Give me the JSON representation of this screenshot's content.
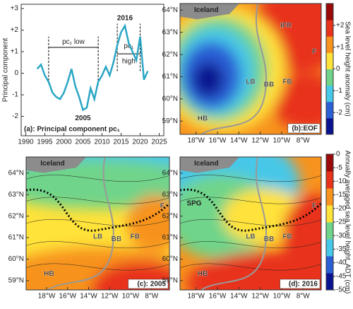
{
  "chart_data": [
    {
      "type": "line",
      "title": "(a): Principal component pc₁",
      "y_label": "Principal component",
      "x": [
        1993,
        1994,
        1995,
        1996,
        1997,
        1998,
        1999,
        2000,
        2001,
        2002,
        2003,
        2004,
        2005,
        2006,
        2007,
        2008,
        2009,
        2010,
        2011,
        2012,
        2013,
        2014,
        2015,
        2016,
        2017,
        2018,
        2019,
        2020,
        2021,
        2022
      ],
      "series": [
        {
          "name": "pc₁",
          "color": "#2aa6c4",
          "values": [
            0.2,
            0.4,
            -0.1,
            -0.4,
            -0.9,
            -1.1,
            -1.2,
            -0.9,
            -0.4,
            0.2,
            -0.6,
            -1.1,
            -1.7,
            -1.6,
            -0.7,
            -1.2,
            -0.4,
            -0.1,
            0.3,
            -0.1,
            0.5,
            1.3,
            1.9,
            2.2,
            1.4,
            1.0,
            0.6,
            1.7,
            -0.3,
            0.1
          ]
        }
      ],
      "xlim": [
        1988.8,
        2026.2
      ],
      "xticks": [
        1990,
        1995,
        2000,
        2005,
        2010,
        2015,
        2020,
        2025
      ],
      "ylim": [
        -2.9,
        3.2
      ],
      "yticks": [
        {
          "value": 3,
          "label": "+3"
        },
        {
          "value": 2,
          "label": "+2"
        },
        {
          "value": 1,
          "label": "+1"
        },
        0,
        -1,
        -2
      ],
      "annotations": [
        "2016",
        "2005",
        "pc₁ low",
        "pc₁",
        "high"
      ],
      "periods": [
        [
          1996,
          2009
        ],
        [
          2014,
          2020
        ]
      ]
    },
    {
      "type": "map",
      "title": "(b):EOF",
      "labels": [
        "Iceland",
        "IFR",
        "F",
        "LB",
        "BB",
        "FB",
        "HB"
      ],
      "xlim": [
        -19.5,
        -6.3
      ],
      "ylim": [
        58.4,
        64.3
      ],
      "xticks": [
        {
          "value": -18,
          "label": "18°W"
        },
        {
          "value": -16,
          "label": "16°W"
        },
        {
          "value": -14,
          "label": "14°W"
        },
        {
          "value": -12,
          "label": "12°W"
        },
        {
          "value": -10,
          "label": "10°W"
        },
        {
          "value": -8,
          "label": "8°W"
        }
      ],
      "yticks": [
        {
          "value": 64,
          "label": "64°N"
        },
        {
          "value": 63,
          "label": "63°N"
        },
        {
          "value": 62,
          "label": "62°N"
        },
        {
          "value": 61,
          "label": "61°N"
        },
        {
          "value": 60,
          "label": "60°N"
        },
        {
          "value": 59,
          "label": "59°N"
        }
      ]
    },
    {
      "type": "map",
      "title": "(c): 2005",
      "labels": [
        "Iceland",
        "F",
        "LB",
        "BB",
        "FB",
        "HB"
      ],
      "xlim": [
        -19.95,
        -6.3
      ],
      "ylim": [
        58.57,
        64.75
      ],
      "xticks": [
        {
          "value": -18,
          "label": "18°W"
        },
        {
          "value": -16,
          "label": "16°W"
        },
        {
          "value": -14,
          "label": "14°W"
        },
        {
          "value": -12,
          "label": "12°W"
        },
        {
          "value": -10,
          "label": "10°W"
        },
        {
          "value": -8,
          "label": "8°W"
        }
      ],
      "yticks": [
        {
          "value": 64,
          "label": "64°N"
        },
        {
          "value": 63,
          "label": "63°N"
        },
        {
          "value": 62,
          "label": "62°N"
        },
        {
          "value": 61,
          "label": "61°N"
        },
        {
          "value": 60,
          "label": "60°N"
        },
        {
          "value": 59,
          "label": "59°N"
        }
      ]
    },
    {
      "type": "map",
      "title": "(d): 2016",
      "labels": [
        "Iceland",
        "SPG",
        "F",
        "LB",
        "BB",
        "FB",
        "HB"
      ],
      "xlim": [
        -19.5,
        -6.3
      ],
      "ylim": [
        58.57,
        64.75
      ],
      "xticks": [
        {
          "value": -18,
          "label": "18°W"
        },
        {
          "value": -16,
          "label": "16°W"
        },
        {
          "value": -14,
          "label": "14°W"
        },
        {
          "value": -12,
          "label": "12°W"
        },
        {
          "value": -10,
          "label": "10°W"
        },
        {
          "value": -8,
          "label": "8°W"
        }
      ],
      "yticks": [
        {
          "value": 64,
          "label": "64°N"
        },
        {
          "value": 63,
          "label": "63°N"
        },
        {
          "value": 62,
          "label": "62°N"
        },
        {
          "value": 61,
          "label": "61°N"
        },
        {
          "value": 60,
          "label": "60°N"
        },
        {
          "value": 59,
          "label": "59°N"
        }
      ]
    },
    {
      "type": "colorbar",
      "label": "Sea level height anomaly (cm)",
      "ylim": [
        -3,
        3
      ],
      "yticks": [
        {
          "value": 2,
          "label": "+2"
        },
        {
          "value": 1,
          "label": "+1"
        },
        0,
        -1,
        -2
      ],
      "colors": [
        "#0a1490",
        "#2a5fd6",
        "#46c8e8",
        "#6fd48a",
        "#ffe23a",
        "#f7931e",
        "#e8331c",
        "#9a0a0a"
      ]
    },
    {
      "type": "colorbar",
      "label": "Annually averaged sea level height, ADT (cm)",
      "ylim": [
        -50,
        0
      ],
      "yticks": [
        0,
        -5,
        -10,
        -15,
        -20,
        -25,
        -30,
        -35,
        -40,
        -45,
        -50
      ],
      "colors": [
        "#0a1490",
        "#2a5fd6",
        "#46c8e8",
        "#6fd48a",
        "#ffe23a",
        "#f7931e",
        "#e8331c",
        "#9a0a0a"
      ]
    }
  ]
}
